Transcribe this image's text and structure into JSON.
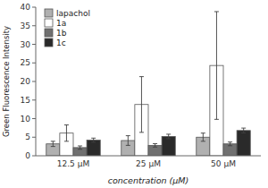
{
  "chart_data": {
    "type": "bar",
    "categories": [
      "12.5 μM",
      "25 μM",
      "50 μM"
    ],
    "series": [
      {
        "name": "lapachol",
        "color": "#b0b0b0",
        "values": [
          3.2,
          4.1,
          5.0
        ],
        "errors": [
          0.7,
          1.3,
          1.1
        ]
      },
      {
        "name": "1a",
        "color": "#ffffff",
        "values": [
          6.1,
          13.8,
          24.3
        ],
        "errors": [
          2.2,
          7.5,
          14.5
        ]
      },
      {
        "name": "1b",
        "color": "#707070",
        "values": [
          2.2,
          2.8,
          3.2
        ],
        "errors": [
          0.45,
          0.45,
          0.5
        ]
      },
      {
        "name": "1c",
        "color": "#2a2a2a",
        "values": [
          4.2,
          5.2,
          6.8
        ],
        "errors": [
          0.55,
          0.6,
          0.65
        ]
      }
    ],
    "xlabel": "concentration (μM)",
    "ylabel": "Green Fluorescence Intensity",
    "ylim": [
      0,
      40
    ],
    "yticks": [
      0,
      5,
      10,
      15,
      20,
      25,
      30,
      35,
      40
    ],
    "grid": false,
    "legend": "upper left"
  }
}
